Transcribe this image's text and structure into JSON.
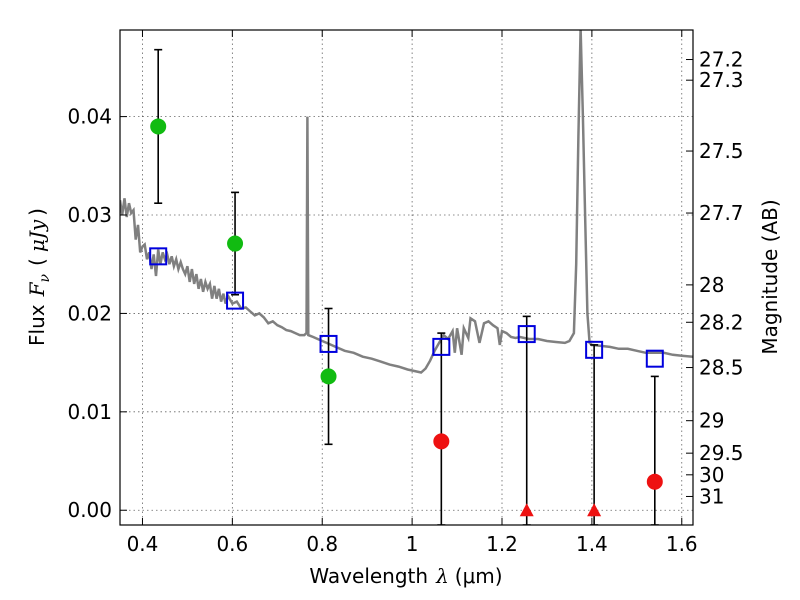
{
  "chart_data": {
    "type": "scatter",
    "xlabel_text": "Wavelength",
    "xlabel_symbol": "λ",
    "xlabel_unit": "(μm)",
    "ylabel_text": "Flux",
    "ylabel_symbol": "F",
    "ylabel_subscript": "ν",
    "ylabel_unit": "μJy",
    "y2label": "Magnitude (AB)",
    "xlim": [
      0.35,
      1.625
    ],
    "ylim": [
      -0.0015,
      0.0488
    ],
    "x_ticks": [
      0.4,
      0.6,
      0.8,
      1.0,
      1.2,
      1.4,
      1.6
    ],
    "x_tick_labels": [
      "0.4",
      "0.6",
      "0.8",
      "1",
      "1.2",
      "1.4",
      "1.6"
    ],
    "y_ticks": [
      0.0,
      0.01,
      0.02,
      0.03,
      0.04
    ],
    "y_tick_labels": [
      "0.00",
      "0.01",
      "0.02",
      "0.03",
      "0.04"
    ],
    "mag_ticks": [
      {
        "label": "27.2",
        "flux": 0.0458
      },
      {
        "label": "27.3",
        "flux": 0.0437
      },
      {
        "label": "27.5",
        "flux": 0.0365
      },
      {
        "label": "27.7",
        "flux": 0.0302
      },
      {
        "label": "28",
        "flux": 0.0229
      },
      {
        "label": "28.2",
        "flux": 0.0191
      },
      {
        "label": "28.5",
        "flux": 0.0145
      },
      {
        "label": "29",
        "flux": 0.0091
      },
      {
        "label": "29.5",
        "flux": 0.0058
      },
      {
        "label": "30",
        "flux": 0.0036
      },
      {
        "label": "31",
        "flux": 0.0014
      }
    ],
    "grid": true,
    "colors": {
      "detection": "#11bb11",
      "nondetection": "#ee1111",
      "model_line": "#808080",
      "model_box": "#0000dd",
      "errorbar": "#000000"
    },
    "series": [
      {
        "kind": "detections",
        "points": [
          {
            "x": 0.435,
            "y": 0.039,
            "yerr": 0.0078
          },
          {
            "x": 0.606,
            "y": 0.0271,
            "yerr": 0.0052
          },
          {
            "x": 0.814,
            "y": 0.0136,
            "yerr": 0.0069
          }
        ]
      },
      {
        "kind": "nondetections",
        "points": [
          {
            "x": 1.065,
            "y": 0.007,
            "yerr_up": 0.011,
            "lower": -0.0015
          },
          {
            "x": 1.54,
            "y": 0.0029,
            "yerr_up": 0.0107,
            "lower": -0.0015
          }
        ]
      },
      {
        "kind": "upper-limit-triangles",
        "points": [
          {
            "x": 1.255,
            "y": 0.0,
            "upper": 0.0197
          },
          {
            "x": 1.405,
            "y": 0.0,
            "upper": 0.0168
          }
        ]
      },
      {
        "kind": "model-photometry",
        "points": [
          {
            "x": 0.435,
            "y": 0.0258
          },
          {
            "x": 0.606,
            "y": 0.0213
          },
          {
            "x": 0.814,
            "y": 0.0169
          },
          {
            "x": 1.065,
            "y": 0.0166
          },
          {
            "x": 1.255,
            "y": 0.0179
          },
          {
            "x": 1.405,
            "y": 0.0163
          },
          {
            "x": 1.54,
            "y": 0.0154
          }
        ]
      },
      {
        "kind": "model-sed",
        "points": [
          [
            0.35,
            0.0315
          ],
          [
            0.355,
            0.03
          ],
          [
            0.36,
            0.0317
          ],
          [
            0.365,
            0.0298
          ],
          [
            0.37,
            0.0312
          ],
          [
            0.375,
            0.0302
          ],
          [
            0.38,
            0.0305
          ],
          [
            0.385,
            0.0275
          ],
          [
            0.39,
            0.029
          ],
          [
            0.395,
            0.0262
          ],
          [
            0.4,
            0.0268
          ],
          [
            0.405,
            0.027
          ],
          [
            0.41,
            0.0255
          ],
          [
            0.415,
            0.0262
          ],
          [
            0.42,
            0.0245
          ],
          [
            0.425,
            0.026
          ],
          [
            0.43,
            0.0238
          ],
          [
            0.435,
            0.0265
          ],
          [
            0.44,
            0.025
          ],
          [
            0.445,
            0.0262
          ],
          [
            0.45,
            0.0255
          ],
          [
            0.455,
            0.026
          ],
          [
            0.46,
            0.025
          ],
          [
            0.465,
            0.0258
          ],
          [
            0.47,
            0.0248
          ],
          [
            0.475,
            0.0255
          ],
          [
            0.48,
            0.0245
          ],
          [
            0.485,
            0.0252
          ],
          [
            0.49,
            0.0245
          ],
          [
            0.495,
            0.024
          ],
          [
            0.5,
            0.0248
          ],
          [
            0.505,
            0.0232
          ],
          [
            0.51,
            0.0245
          ],
          [
            0.515,
            0.023
          ],
          [
            0.52,
            0.024
          ],
          [
            0.525,
            0.0225
          ],
          [
            0.53,
            0.0235
          ],
          [
            0.535,
            0.0222
          ],
          [
            0.54,
            0.0232
          ],
          [
            0.545,
            0.0225
          ],
          [
            0.55,
            0.023
          ],
          [
            0.555,
            0.0215
          ],
          [
            0.56,
            0.0228
          ],
          [
            0.565,
            0.0215
          ],
          [
            0.57,
            0.0225
          ],
          [
            0.575,
            0.0212
          ],
          [
            0.58,
            0.022
          ],
          [
            0.585,
            0.021
          ],
          [
            0.59,
            0.0218
          ],
          [
            0.6,
            0.021
          ],
          [
            0.61,
            0.0212
          ],
          [
            0.62,
            0.0205
          ],
          [
            0.63,
            0.0206
          ],
          [
            0.64,
            0.0202
          ],
          [
            0.65,
            0.0198
          ],
          [
            0.66,
            0.02
          ],
          [
            0.67,
            0.0196
          ],
          [
            0.68,
            0.019
          ],
          [
            0.69,
            0.0192
          ],
          [
            0.7,
            0.0188
          ],
          [
            0.71,
            0.0186
          ],
          [
            0.72,
            0.0183
          ],
          [
            0.73,
            0.0182
          ],
          [
            0.74,
            0.018
          ],
          [
            0.75,
            0.0178
          ],
          [
            0.76,
            0.0178
          ],
          [
            0.765,
            0.018
          ],
          [
            0.767,
            0.04
          ],
          [
            0.769,
            0.0178
          ],
          [
            0.78,
            0.0176
          ],
          [
            0.79,
            0.0174
          ],
          [
            0.8,
            0.0172
          ],
          [
            0.81,
            0.017
          ],
          [
            0.82,
            0.0168
          ],
          [
            0.83,
            0.0166
          ],
          [
            0.85,
            0.0162
          ],
          [
            0.87,
            0.016
          ],
          [
            0.89,
            0.0156
          ],
          [
            0.91,
            0.0154
          ],
          [
            0.93,
            0.0151
          ],
          [
            0.95,
            0.0148
          ],
          [
            0.97,
            0.0146
          ],
          [
            0.99,
            0.0143
          ],
          [
            1.01,
            0.0141
          ],
          [
            1.02,
            0.014
          ],
          [
            1.03,
            0.0144
          ],
          [
            1.04,
            0.0152
          ],
          [
            1.05,
            0.0162
          ],
          [
            1.06,
            0.017
          ],
          [
            1.07,
            0.0178
          ],
          [
            1.08,
            0.0174
          ],
          [
            1.09,
            0.0182
          ],
          [
            1.095,
            0.016
          ],
          [
            1.1,
            0.0185
          ],
          [
            1.11,
            0.0158
          ],
          [
            1.115,
            0.0185
          ],
          [
            1.125,
            0.0175
          ],
          [
            1.13,
            0.0195
          ],
          [
            1.14,
            0.0192
          ],
          [
            1.15,
            0.017
          ],
          [
            1.16,
            0.019
          ],
          [
            1.17,
            0.0192
          ],
          [
            1.18,
            0.0188
          ],
          [
            1.19,
            0.0185
          ],
          [
            1.195,
            0.0168
          ],
          [
            1.2,
            0.0182
          ],
          [
            1.21,
            0.018
          ],
          [
            1.22,
            0.0176
          ],
          [
            1.23,
            0.0175
          ],
          [
            1.24,
            0.0176
          ],
          [
            1.26,
            0.0174
          ],
          [
            1.28,
            0.0174
          ],
          [
            1.3,
            0.0172
          ],
          [
            1.32,
            0.0171
          ],
          [
            1.34,
            0.017
          ],
          [
            1.35,
            0.0172
          ],
          [
            1.36,
            0.018
          ],
          [
            1.365,
            0.025
          ],
          [
            1.37,
            0.038
          ],
          [
            1.375,
            0.049
          ],
          [
            1.38,
            0.04
          ],
          [
            1.385,
            0.03
          ],
          [
            1.39,
            0.02
          ],
          [
            1.395,
            0.017
          ],
          [
            1.4,
            0.0168
          ],
          [
            1.42,
            0.0167
          ],
          [
            1.44,
            0.0166
          ],
          [
            1.46,
            0.0164
          ],
          [
            1.48,
            0.0164
          ],
          [
            1.5,
            0.0162
          ],
          [
            1.52,
            0.016
          ],
          [
            1.54,
            0.016
          ],
          [
            1.56,
            0.016
          ],
          [
            1.58,
            0.0158
          ],
          [
            1.6,
            0.0157
          ],
          [
            1.625,
            0.0156
          ]
        ]
      }
    ]
  }
}
